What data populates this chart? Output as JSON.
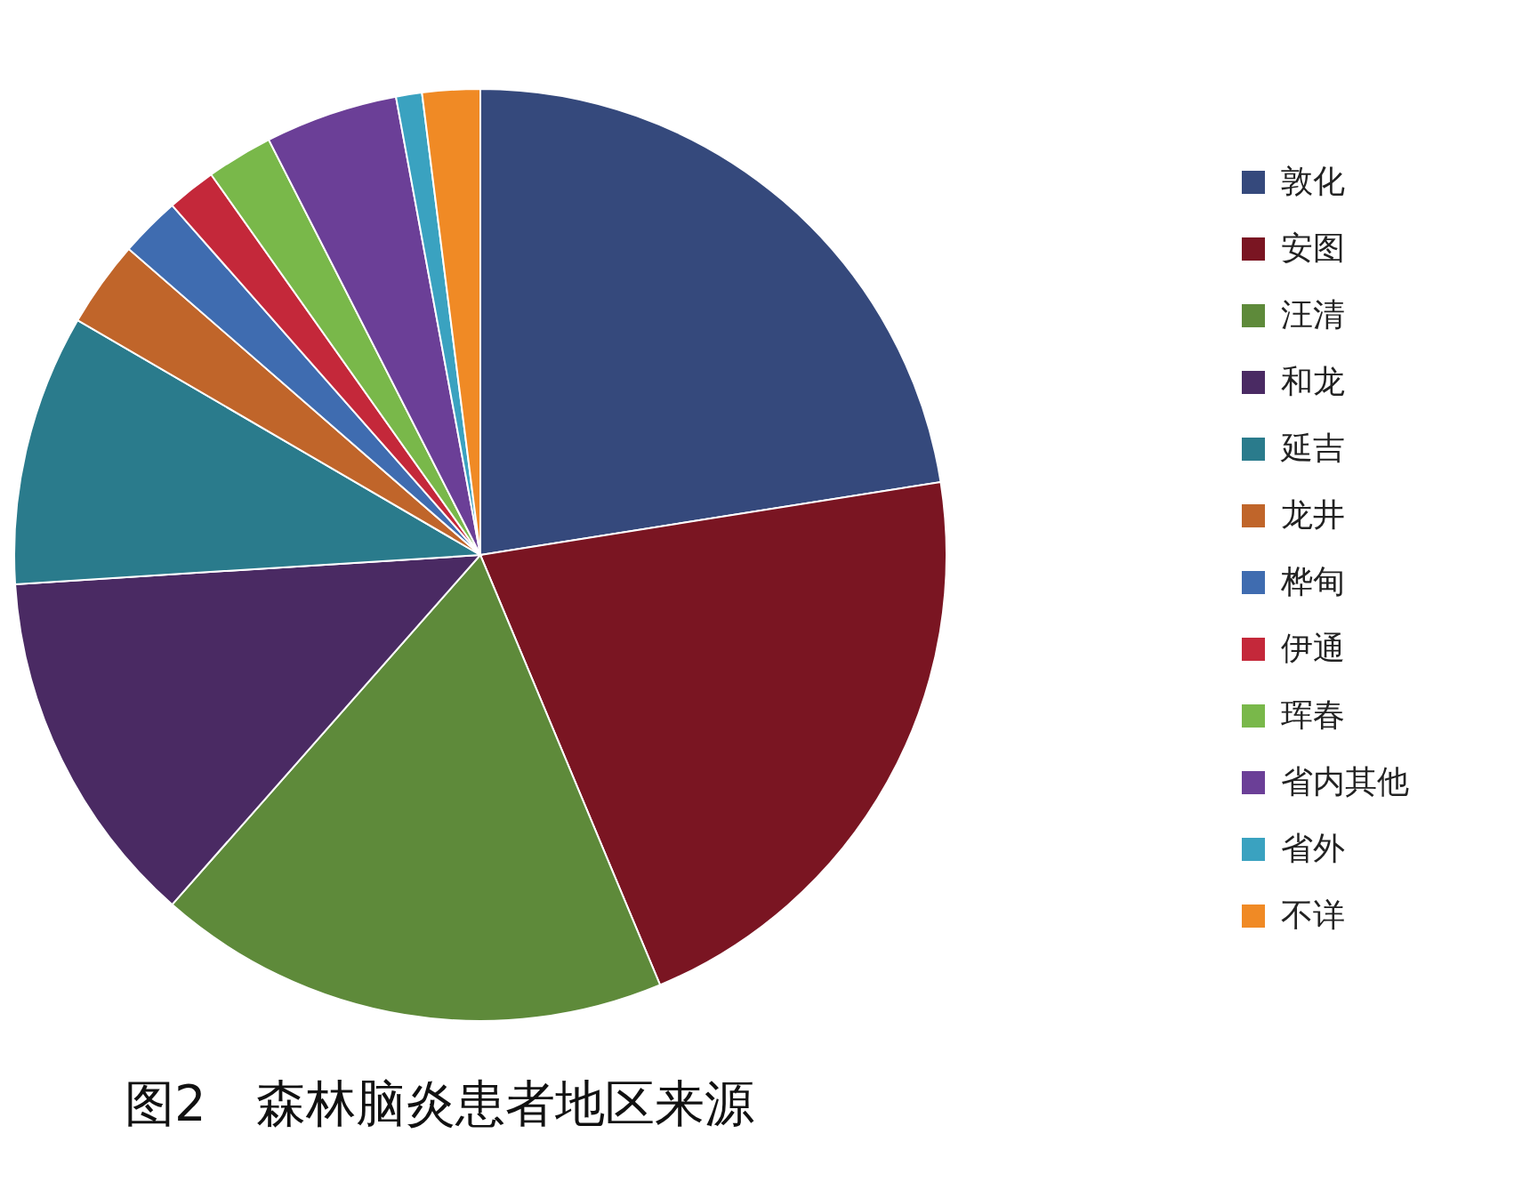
{
  "chart_data": {
    "type": "pie",
    "title": "图2　森林脑炎患者地区来源",
    "categories": [
      "敦化",
      "安图",
      "汪清",
      "和龙",
      "延吉",
      "龙井",
      "桦甸",
      "伊通",
      "珲春",
      "省内其他",
      "省外",
      "不详"
    ],
    "values": [
      22.5,
      21.2,
      17.8,
      12.5,
      9.4,
      3.0,
      2.1,
      1.7,
      2.3,
      4.6,
      0.9,
      2.0
    ],
    "colors": [
      "#35497c",
      "#7a1522",
      "#5e8a3a",
      "#4a2a63",
      "#2a7b8c",
      "#c0652a",
      "#3f6cb0",
      "#c4283a",
      "#79b84a",
      "#6b3f97",
      "#3aa2c0",
      "#f08a25"
    ],
    "legend": "right"
  }
}
